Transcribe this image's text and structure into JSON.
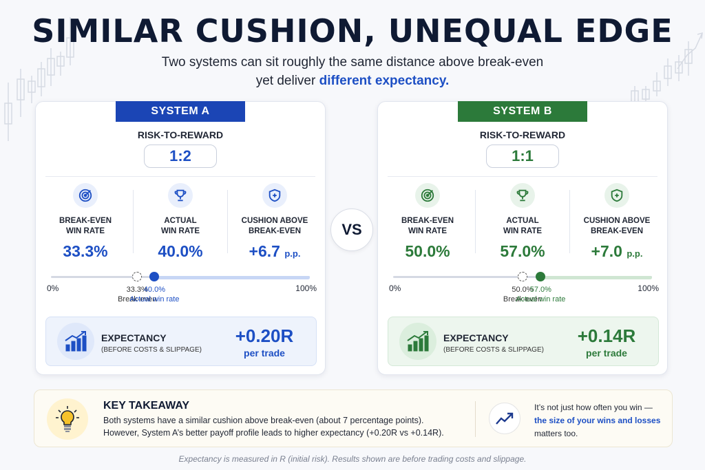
{
  "header": {
    "title": "SIMILAR CUSHION, UNEQUAL EDGE",
    "subtitle_line1": "Two systems can sit roughly the same distance above break-even",
    "subtitle_line2_prefix": "yet deliver",
    "subtitle_line2_highlight": "different expectancy."
  },
  "vs_label": "VS",
  "common": {
    "rr_label": "RISK-TO-REWARD",
    "be_label_1": "BREAK-EVEN",
    "be_label_2": "WIN RATE",
    "act_label_1": "ACTUAL",
    "act_label_2": "WIN RATE",
    "cush_label_1": "CUSHION ABOVE",
    "cush_label_2": "BREAK-EVEN",
    "pp_unit": "p.p.",
    "scale_min": "0%",
    "scale_max": "100%",
    "be_marker_caption": "Break-even",
    "act_marker_caption": "Actual win rate",
    "exp_title": "EXPECTANCY",
    "exp_sub": "(BEFORE COSTS & SLIPPAGE)",
    "per_trade": "per trade"
  },
  "system_a": {
    "tag": "SYSTEM A",
    "rr": "1:2",
    "breakeven": "33.3%",
    "actual": "40.0%",
    "cushion": "+6.7",
    "be_marker": "33.3%",
    "act_marker": "40.0%",
    "breakeven_value": 33.3,
    "actual_value": 40.0,
    "expectancy": "+0.20R",
    "accent": "#1d4fc4"
  },
  "system_b": {
    "tag": "SYSTEM B",
    "rr": "1:1",
    "breakeven": "50.0%",
    "actual": "57.0%",
    "cushion": "+7.0",
    "be_marker": "50.0%",
    "act_marker": "57.0%",
    "breakeven_value": 50.0,
    "actual_value": 57.0,
    "expectancy": "+0.14R",
    "accent": "#2c7a3a"
  },
  "takeaway": {
    "title": "KEY TAKEAWAY",
    "line1": "Both systems have a similar cushion above break-even (about 7 percentage points).",
    "line2": "However, System A’s better payoff profile leads to higher expectancy (+0.20R vs +0.14R).",
    "right1": "It’s not just how often you win —",
    "right2": "the size of your wins and losses",
    "right3": "matters too."
  },
  "footnote": "Expectancy is measured in R (initial risk). Results shown are before trading costs and slippage.",
  "icons": [
    "target-icon",
    "trophy-icon",
    "shield-plus-icon",
    "bar-chart-up-icon",
    "lightbulb-icon",
    "trend-up-icon"
  ]
}
